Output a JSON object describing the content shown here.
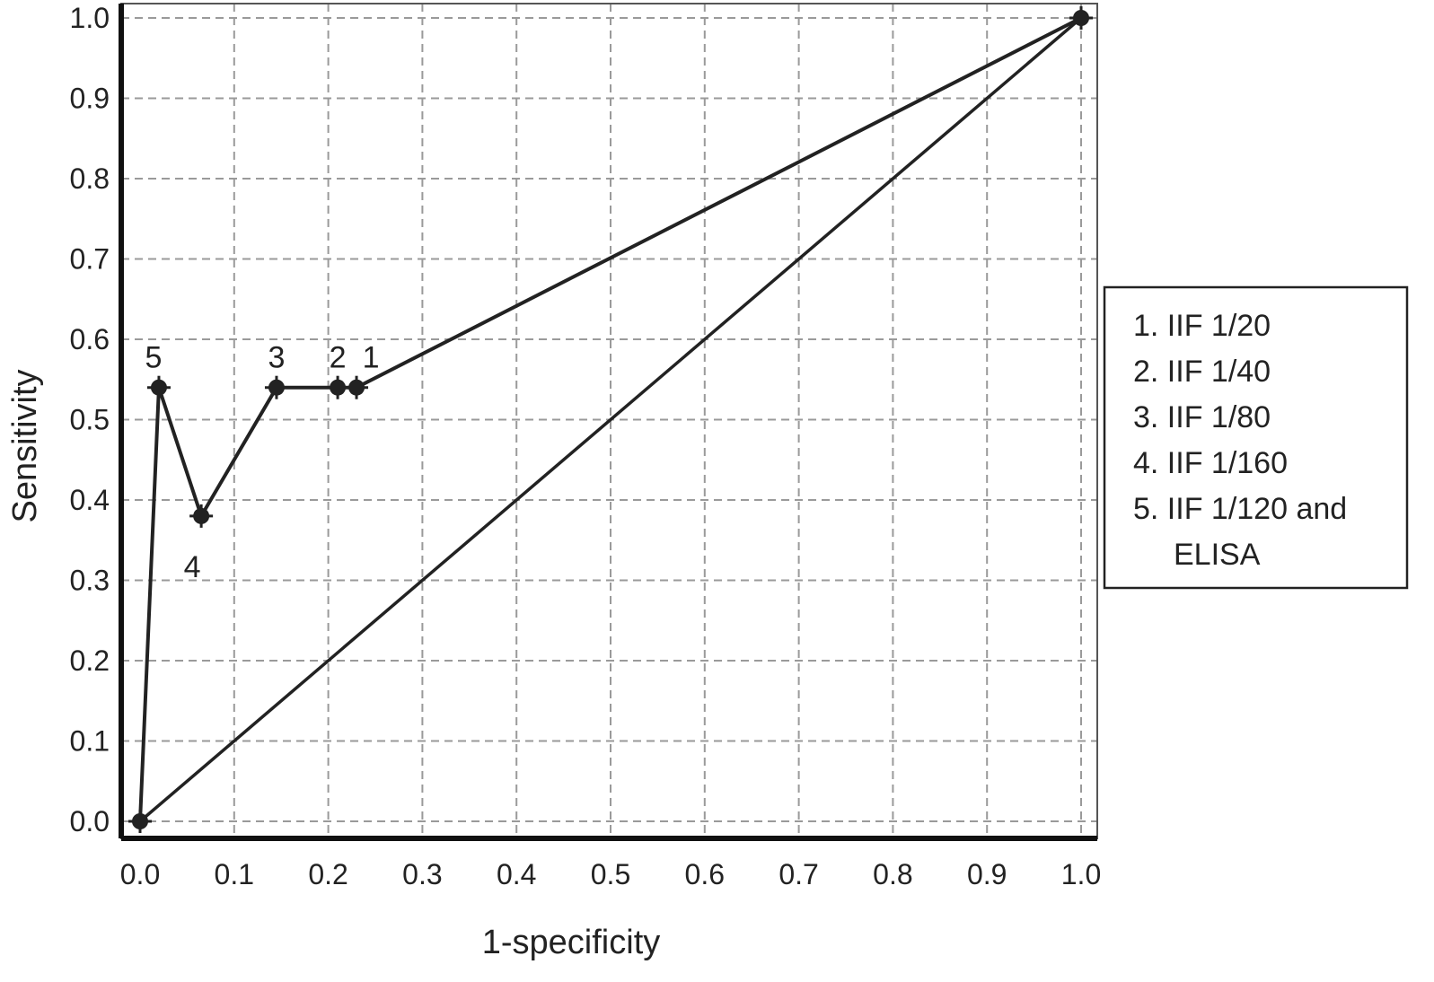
{
  "chart_data": {
    "type": "line",
    "xlabel": "1-specificity",
    "ylabel": "Sensitivity",
    "xlim": [
      0.0,
      1.0
    ],
    "ylim": [
      0.0,
      1.0
    ],
    "xticks": [
      "0.0",
      "0.1",
      "0.2",
      "0.3",
      "0.4",
      "0.5",
      "0.6",
      "0.7",
      "0.8",
      "0.9",
      "1.0"
    ],
    "yticks": [
      "0.0",
      "0.1",
      "0.2",
      "0.3",
      "0.4",
      "0.5",
      "0.6",
      "0.7",
      "0.8",
      "0.9",
      "1.0"
    ],
    "grid": true,
    "legend_position": "right",
    "legend": [
      "1. IIF 1/20",
      "2. IIF 1/40",
      "3. IIF 1/80",
      "4. IIF 1/160",
      [
        "5. IIF 1/120 and",
        "ELISA"
      ]
    ],
    "series": [
      {
        "x": [
          0.0,
          0.02,
          0.065,
          0.145,
          0.21,
          0.23,
          1.0
        ],
        "y": [
          0.0,
          0.54,
          0.38,
          0.54,
          0.54,
          0.54,
          1.0
        ],
        "point_labels": [
          "",
          "5",
          "4",
          "3",
          "2",
          "1",
          ""
        ]
      },
      {
        "x": [
          0.0,
          1.0
        ],
        "y": [
          0.0,
          1.0
        ]
      }
    ]
  }
}
